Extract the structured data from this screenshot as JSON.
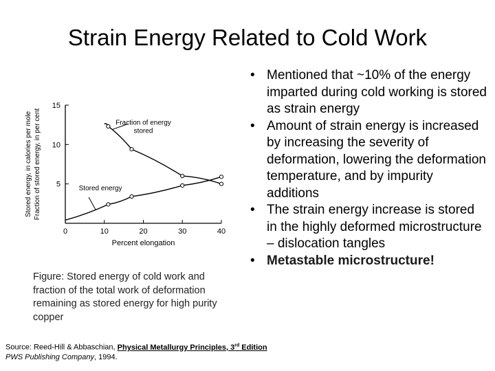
{
  "title": "Strain Energy Related to Cold Work",
  "bullets": [
    {
      "text": "Mentioned that ~10% of the energy imparted during cold working is stored as strain energy"
    },
    {
      "text": "Amount of strain energy is increased by increasing the severity of deformation, lowering the deformation temperature, and by impurity additions"
    },
    {
      "text": "The strain energy increase is stored in the highly deformed microstructure – dislocation tangles"
    },
    {
      "text": "Metastable microstructure!"
    }
  ],
  "bullet_symbol": "•",
  "caption": "Figure: Stored energy of cold work and fraction of the total work of deformation remaining as stored energy for high purity copper",
  "source": {
    "prefix": "Source:  Reed-Hill & Abbaschian, ",
    "book": "Physical Metallurgy Principles, 3",
    "edition_sup": "rd",
    "edition_suffix": " Edition",
    "publisher": "PWS Publishing Company",
    "year": ", 1994."
  },
  "chart_data": {
    "type": "line",
    "xlabel": "Percent elongation",
    "ylabel": "Stored energy, in calories per mole\nFraction of stored energy, in per cent",
    "xlim": [
      0,
      40
    ],
    "ylim": [
      0,
      15
    ],
    "xticks": [
      0,
      10,
      20,
      30,
      40
    ],
    "yticks": [
      5,
      10,
      15
    ],
    "series": [
      {
        "name": "Fraction of energy stored",
        "x": [
          11,
          17,
          30,
          40
        ],
        "y": [
          12.3,
          9.4,
          6.0,
          5.0
        ]
      },
      {
        "name": "Stored energy",
        "x": [
          11,
          17,
          30,
          40
        ],
        "y": [
          2.4,
          3.4,
          4.8,
          5.9
        ]
      }
    ],
    "annotations": [
      "Fraction of energy\nstored",
      "Stored energy"
    ]
  }
}
